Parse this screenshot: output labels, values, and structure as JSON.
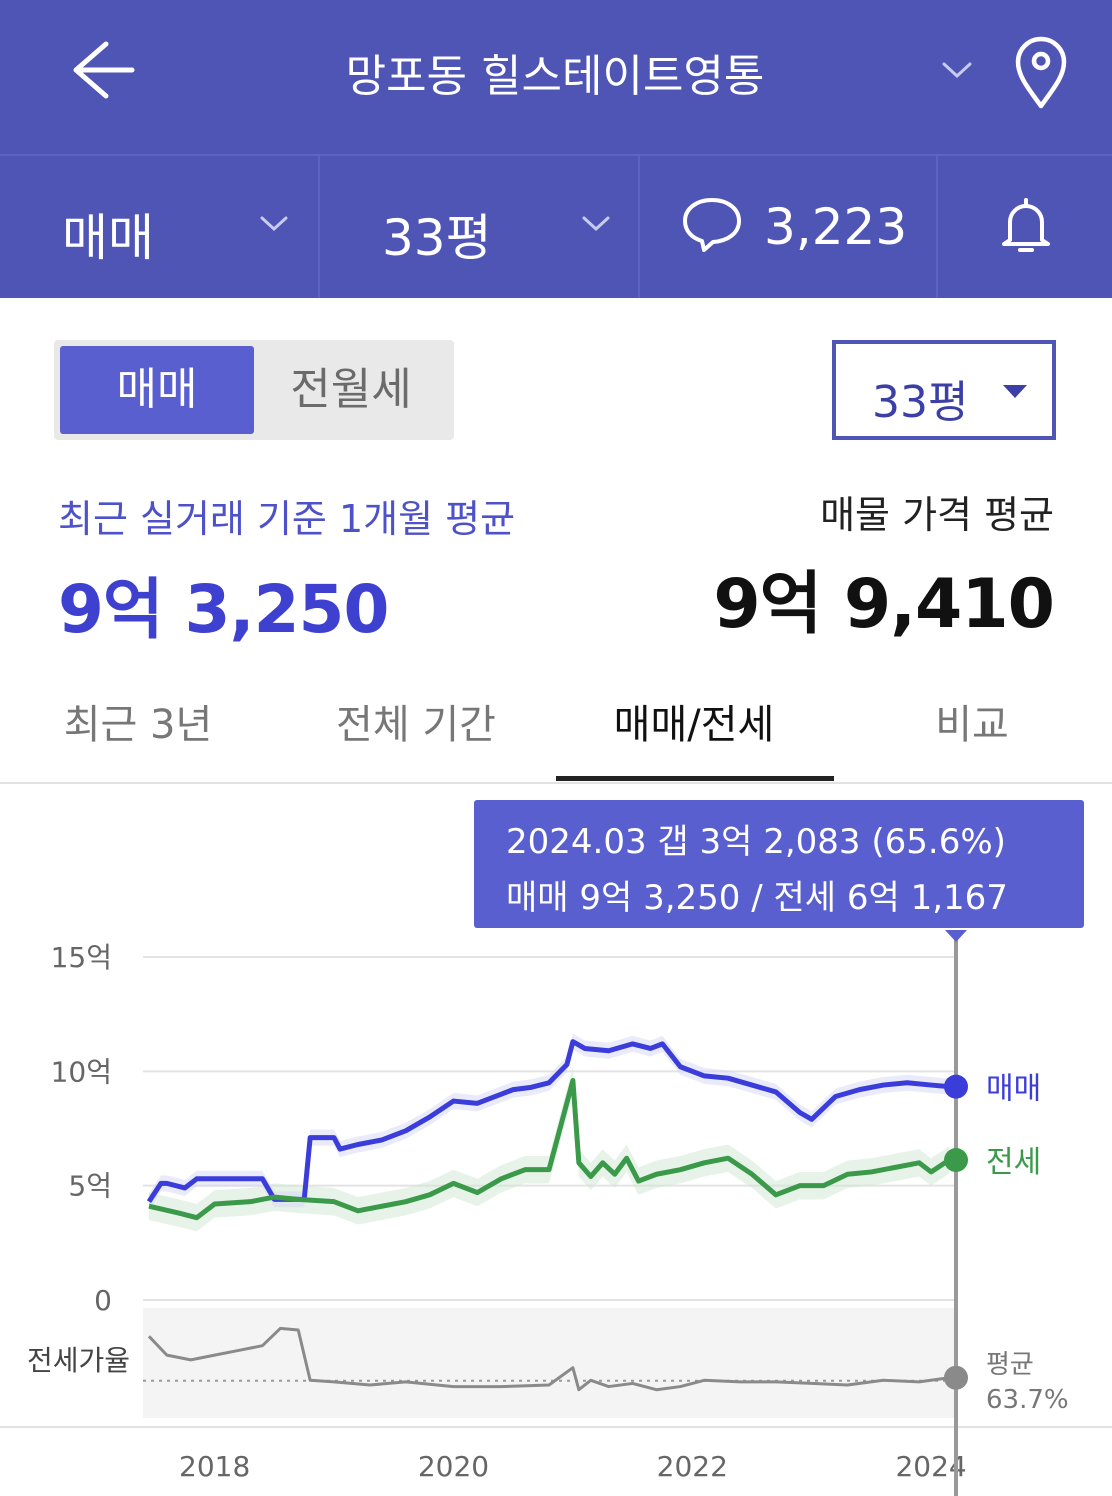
{
  "header": {
    "title": "망포동 힐스테이트영통",
    "icons": {
      "back": "arrow-left-icon",
      "dropdown": "chevron-down-icon",
      "location": "map-pin-icon"
    }
  },
  "subbar": {
    "trade_type": "매매",
    "size": "33평",
    "comment_count": "3,223",
    "icons": {
      "comment": "speech-bubble-icon",
      "alert": "bell-icon"
    }
  },
  "controls": {
    "toggle_on": "매매",
    "toggle_off": "전월세",
    "size_select": "33평"
  },
  "summary": {
    "recent_label": "최근 실거래 기준 1개월 평균",
    "recent_value": "9억 3,250",
    "listing_label": "매물 가격 평균",
    "listing_value": "9억 9,410"
  },
  "tabs": [
    {
      "label": "최근 3년"
    },
    {
      "label": "전체 기간"
    },
    {
      "label": "매매/전세"
    },
    {
      "label": "비교"
    }
  ],
  "tooltip": {
    "line1": "2024.03  갭 3억 2,083 (65.6%)",
    "line2": "매매 9억 3,250 / 전세 6억 1,167"
  },
  "colors": {
    "header_bg": "#4f55b4",
    "accent": "#3e40d0",
    "sale_line": "#3b3ddb",
    "jeonse_line": "#3a9a4a",
    "ratio_line": "#8a8a8a"
  },
  "chart_data": {
    "type": "line",
    "ylabel_ticks": [
      "15억",
      "10억",
      "5억",
      "0"
    ],
    "xtick_labels": [
      "2018",
      "2020",
      "2022",
      "2024"
    ],
    "ylim": [
      0,
      15
    ],
    "x_range": [
      2017.4,
      2024.2
    ],
    "grid": true,
    "series": [
      {
        "name": "매매",
        "unit": "억",
        "x": [
          2017.45,
          2017.55,
          2017.6,
          2017.75,
          2017.85,
          2018.0,
          2018.2,
          2018.4,
          2018.5,
          2018.55,
          2018.75,
          2018.8,
          2019.0,
          2019.05,
          2019.2,
          2019.4,
          2019.6,
          2019.8,
          2020.0,
          2020.2,
          2020.4,
          2020.5,
          2020.65,
          2020.8,
          2020.95,
          2021.0,
          2021.1,
          2021.3,
          2021.5,
          2021.65,
          2021.75,
          2021.9,
          2022.1,
          2022.3,
          2022.5,
          2022.7,
          2022.9,
          2023.0,
          2023.2,
          2023.4,
          2023.6,
          2023.8,
          2024.0,
          2024.15
        ],
        "values": [
          4.3,
          5.1,
          5.1,
          4.9,
          5.3,
          5.3,
          5.3,
          5.3,
          4.4,
          4.4,
          4.4,
          7.1,
          7.1,
          6.6,
          6.8,
          7.0,
          7.4,
          8.0,
          8.7,
          8.6,
          9.0,
          9.2,
          9.3,
          9.5,
          10.3,
          11.3,
          11.0,
          10.9,
          11.2,
          11.0,
          11.2,
          10.2,
          9.8,
          9.7,
          9.4,
          9.1,
          8.2,
          7.9,
          8.9,
          9.2,
          9.4,
          9.5,
          9.4,
          9.33
        ]
      },
      {
        "name": "전세",
        "unit": "억",
        "x": [
          2017.45,
          2017.7,
          2017.85,
          2018.0,
          2018.3,
          2018.5,
          2018.7,
          2019.0,
          2019.2,
          2019.4,
          2019.6,
          2019.8,
          2020.0,
          2020.2,
          2020.4,
          2020.6,
          2020.8,
          2021.0,
          2021.05,
          2021.15,
          2021.25,
          2021.35,
          2021.45,
          2021.55,
          2021.7,
          2021.9,
          2022.1,
          2022.3,
          2022.5,
          2022.7,
          2022.9,
          2023.1,
          2023.3,
          2023.5,
          2023.7,
          2023.9,
          2024.0,
          2024.15
        ],
        "values": [
          4.1,
          3.8,
          3.6,
          4.2,
          4.3,
          4.5,
          4.4,
          4.3,
          3.9,
          4.1,
          4.3,
          4.6,
          5.1,
          4.7,
          5.3,
          5.7,
          5.7,
          9.6,
          6.0,
          5.4,
          6.0,
          5.5,
          6.2,
          5.2,
          5.5,
          5.7,
          6.0,
          6.2,
          5.5,
          4.6,
          5.0,
          5.0,
          5.5,
          5.6,
          5.8,
          6.0,
          5.6,
          6.12
        ]
      },
      {
        "name": "전세가율",
        "unit": "%",
        "x": [
          2017.45,
          2017.6,
          2017.8,
          2018.0,
          2018.2,
          2018.4,
          2018.55,
          2018.7,
          2018.8,
          2019.0,
          2019.3,
          2019.6,
          2020.0,
          2020.4,
          2020.8,
          2021.0,
          2021.05,
          2021.15,
          2021.3,
          2021.5,
          2021.7,
          2021.9,
          2022.1,
          2022.4,
          2022.7,
          2023.0,
          2023.3,
          2023.6,
          2023.9,
          2024.15
        ],
        "values": [
          92,
          80,
          77,
          80,
          83,
          86,
          97,
          96,
          64,
          63,
          61,
          63,
          60,
          60,
          61,
          72,
          58,
          64,
          60,
          62,
          58,
          60,
          64,
          63,
          63,
          62,
          61,
          64,
          63,
          65.6
        ]
      }
    ],
    "end_labels": {
      "sale": "매매",
      "jeonse": "전세"
    },
    "ratio": {
      "label": "전세가율",
      "avg_label": "평균",
      "avg_value": "63.7%",
      "avg": 63.7,
      "range": [
        40,
        110
      ]
    }
  }
}
